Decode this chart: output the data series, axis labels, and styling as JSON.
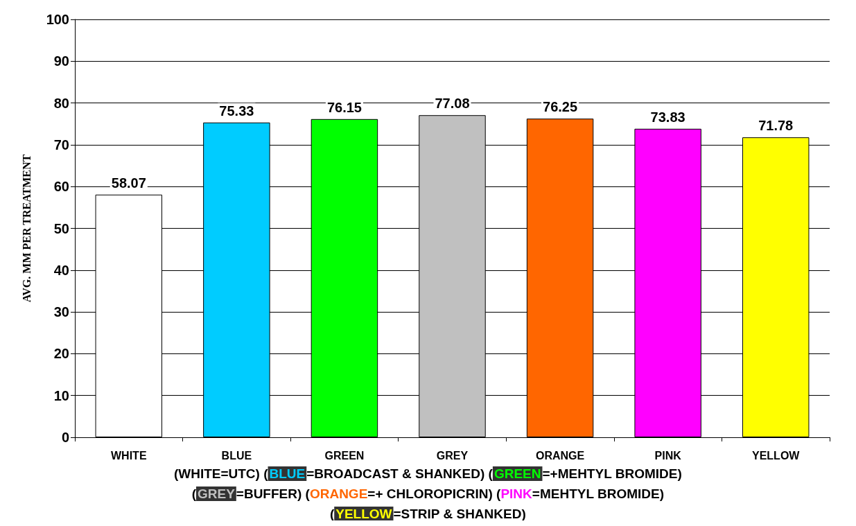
{
  "chart_data": {
    "type": "bar",
    "ylabel": "AVG. MM PER TREATMENT",
    "categories": [
      "WHITE",
      "BLUE",
      "GREEN",
      "GREY",
      "ORANGE",
      "PINK",
      "YELLOW"
    ],
    "values": [
      58.07,
      75.33,
      76.15,
      77.08,
      76.25,
      73.83,
      71.78
    ],
    "colors": [
      "#ffffff",
      "#00ccff",
      "#00ff00",
      "#c0c0c0",
      "#ff6600",
      "#ff00ff",
      "#ffff00"
    ],
    "ylim": [
      0,
      100
    ],
    "yticks": [
      0,
      10,
      20,
      30,
      40,
      50,
      60,
      70,
      80,
      90,
      100
    ],
    "grid": "y",
    "data_labels": true,
    "annotations": [
      "(WHITE=UTC)",
      "(BLUE=BROADCAST & SHANKED)",
      "(GREEN=+MEHTYL BROMIDE)",
      "(GREY=BUFFER)",
      "(ORANGE=+ CHLOROPICRIN)",
      "(PINK=MEHTYL BROMIDE)",
      "(YELLOW=STRIP & SHANKED)"
    ]
  }
}
